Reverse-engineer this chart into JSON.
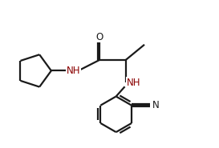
{
  "bg_color": "#ffffff",
  "line_color": "#1a1a1a",
  "heteroatom_color": "#8B0000",
  "bond_lw": 1.6,
  "fig_width": 2.73,
  "fig_height": 1.85,
  "dpi": 100,
  "xlim": [
    0,
    10
  ],
  "ylim": [
    0,
    6.8
  ]
}
